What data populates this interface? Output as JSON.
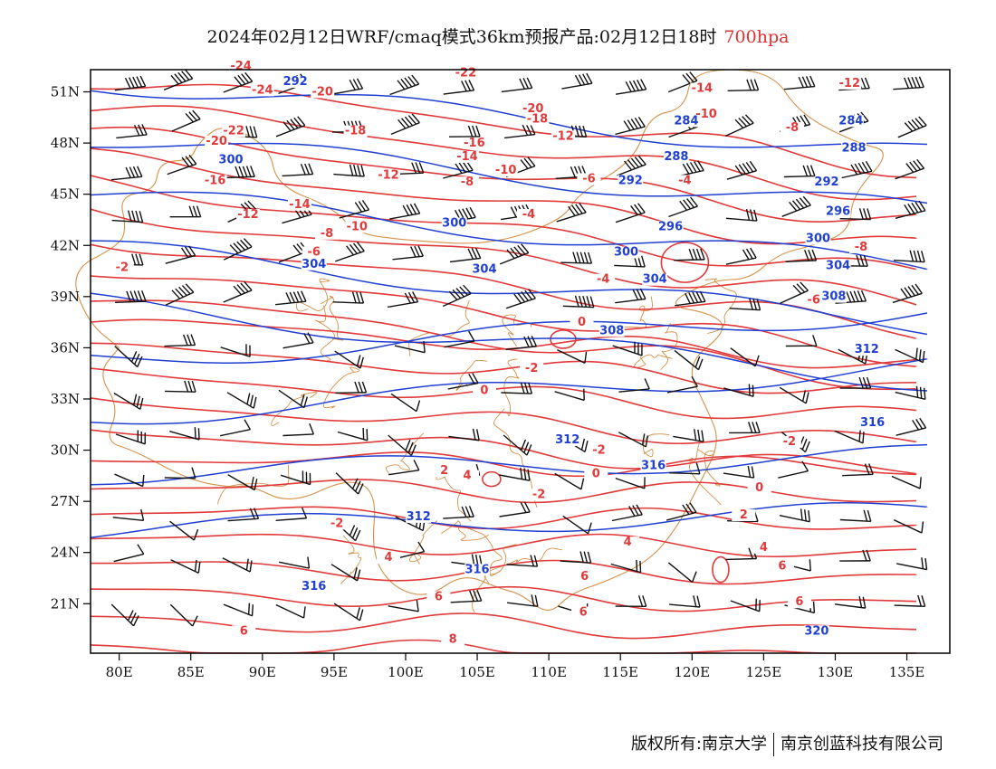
{
  "title": {
    "main": "2024年02月12日WRF/cmaq模式36km预报产品:02月12日18时",
    "level": "700hpa"
  },
  "colors": {
    "temperature": "#e03a3a",
    "height": "#2040d0",
    "boundary": "#d4914a",
    "wind": "#111111",
    "frame": "#000000"
  },
  "axes": {
    "lon_ticks": [
      "80E",
      "85E",
      "90E",
      "95E",
      "100E",
      "105E",
      "110E",
      "115E",
      "120E",
      "125E",
      "130E",
      "135E"
    ],
    "lat_ticks": [
      "51N",
      "48N",
      "45N",
      "42N",
      "39N",
      "36N",
      "33N",
      "30N",
      "27N",
      "24N",
      "21N"
    ]
  },
  "temperature_labels": [
    {
      "text": "-24",
      "lon": 88.5,
      "lat": 52.3
    },
    {
      "text": "-24",
      "lon": 90.0,
      "lat": 50.9
    },
    {
      "text": "-22",
      "lon": 104.2,
      "lat": 51.9
    },
    {
      "text": "-22",
      "lon": 88.0,
      "lat": 48.5
    },
    {
      "text": "-20",
      "lon": 94.2,
      "lat": 50.8
    },
    {
      "text": "-20",
      "lon": 86.8,
      "lat": 47.9
    },
    {
      "text": "-20",
      "lon": 108.9,
      "lat": 49.8
    },
    {
      "text": "-18",
      "lon": 109.2,
      "lat": 49.2
    },
    {
      "text": "-18",
      "lon": 96.5,
      "lat": 48.5
    },
    {
      "text": "-16",
      "lon": 86.7,
      "lat": 45.6
    },
    {
      "text": "-16",
      "lon": 104.8,
      "lat": 47.8
    },
    {
      "text": "-14",
      "lon": 104.3,
      "lat": 47.0
    },
    {
      "text": "-14",
      "lon": 92.6,
      "lat": 44.2
    },
    {
      "text": "-14",
      "lon": 120.7,
      "lat": 51.0
    },
    {
      "text": "-12",
      "lon": 98.8,
      "lat": 45.9
    },
    {
      "text": "-12",
      "lon": 89.0,
      "lat": 43.6
    },
    {
      "text": "-12",
      "lon": 111.0,
      "lat": 48.2
    },
    {
      "text": "-12",
      "lon": 131.0,
      "lat": 51.3
    },
    {
      "text": "-10",
      "lon": 96.6,
      "lat": 42.9
    },
    {
      "text": "-10",
      "lon": 107.0,
      "lat": 46.2
    },
    {
      "text": "-10",
      "lon": 121.0,
      "lat": 49.5
    },
    {
      "text": "-8",
      "lon": 94.5,
      "lat": 42.5
    },
    {
      "text": "-8",
      "lon": 104.3,
      "lat": 45.5
    },
    {
      "text": "-8",
      "lon": 127.0,
      "lat": 48.7
    },
    {
      "text": "-8",
      "lon": 131.8,
      "lat": 41.7
    },
    {
      "text": "-6",
      "lon": 93.6,
      "lat": 41.4
    },
    {
      "text": "-6",
      "lon": 112.8,
      "lat": 45.7
    },
    {
      "text": "-6",
      "lon": 128.5,
      "lat": 38.6
    },
    {
      "text": "-4",
      "lon": 108.6,
      "lat": 43.6
    },
    {
      "text": "-4",
      "lon": 119.5,
      "lat": 45.6
    },
    {
      "text": "-4",
      "lon": 113.8,
      "lat": 39.8
    },
    {
      "text": "-2",
      "lon": 80.2,
      "lat": 40.5
    },
    {
      "text": "-2",
      "lon": 108.8,
      "lat": 34.6
    },
    {
      "text": "-2",
      "lon": 113.5,
      "lat": 29.8
    },
    {
      "text": "-2",
      "lon": 109.3,
      "lat": 27.2
    },
    {
      "text": "-2",
      "lon": 126.8,
      "lat": 30.3
    },
    {
      "text": "-2",
      "lon": 95.2,
      "lat": 25.5
    },
    {
      "text": "0",
      "lon": 105.5,
      "lat": 33.3
    },
    {
      "text": "0",
      "lon": 112.3,
      "lat": 37.3
    },
    {
      "text": "0",
      "lon": 113.3,
      "lat": 28.4
    },
    {
      "text": "0",
      "lon": 124.7,
      "lat": 27.6
    },
    {
      "text": "2",
      "lon": 102.7,
      "lat": 28.6
    },
    {
      "text": "2",
      "lon": 123.6,
      "lat": 26.0
    },
    {
      "text": "4",
      "lon": 104.3,
      "lat": 28.3
    },
    {
      "text": "4",
      "lon": 98.8,
      "lat": 23.5
    },
    {
      "text": "4",
      "lon": 115.5,
      "lat": 24.4
    },
    {
      "text": "4",
      "lon": 125.0,
      "lat": 24.1
    },
    {
      "text": "6",
      "lon": 112.5,
      "lat": 22.4
    },
    {
      "text": "6",
      "lon": 126.3,
      "lat": 23.0
    },
    {
      "text": "6",
      "lon": 102.3,
      "lat": 21.2
    },
    {
      "text": "6",
      "lon": 112.4,
      "lat": 20.3
    },
    {
      "text": "6",
      "lon": 127.5,
      "lat": 20.9
    },
    {
      "text": "6",
      "lon": 88.7,
      "lat": 19.2
    },
    {
      "text": "8",
      "lon": 103.3,
      "lat": 18.7
    }
  ],
  "height_labels": [
    {
      "text": "292",
      "lon": 92.3,
      "lat": 51.4
    },
    {
      "text": "300",
      "lon": 87.8,
      "lat": 46.8
    },
    {
      "text": "284",
      "lon": 119.6,
      "lat": 49.1
    },
    {
      "text": "284",
      "lon": 131.1,
      "lat": 49.1
    },
    {
      "text": "288",
      "lon": 118.9,
      "lat": 47.0
    },
    {
      "text": "288",
      "lon": 131.3,
      "lat": 47.5
    },
    {
      "text": "292",
      "lon": 115.7,
      "lat": 45.6
    },
    {
      "text": "292",
      "lon": 129.4,
      "lat": 45.5
    },
    {
      "text": "296",
      "lon": 118.5,
      "lat": 42.9
    },
    {
      "text": "296",
      "lon": 130.2,
      "lat": 43.8
    },
    {
      "text": "300",
      "lon": 103.4,
      "lat": 43.1
    },
    {
      "text": "300",
      "lon": 115.4,
      "lat": 41.4
    },
    {
      "text": "300",
      "lon": 128.8,
      "lat": 42.2
    },
    {
      "text": "304",
      "lon": 93.6,
      "lat": 40.7
    },
    {
      "text": "304",
      "lon": 105.5,
      "lat": 40.4
    },
    {
      "text": "304",
      "lon": 117.4,
      "lat": 39.8
    },
    {
      "text": "304",
      "lon": 130.2,
      "lat": 40.6
    },
    {
      "text": "308",
      "lon": 114.4,
      "lat": 36.8
    },
    {
      "text": "308",
      "lon": 129.9,
      "lat": 38.8
    },
    {
      "text": "312",
      "lon": 132.2,
      "lat": 35.7
    },
    {
      "text": "312",
      "lon": 111.3,
      "lat": 30.4
    },
    {
      "text": "312",
      "lon": 100.9,
      "lat": 25.9
    },
    {
      "text": "316",
      "lon": 132.6,
      "lat": 31.4
    },
    {
      "text": "316",
      "lon": 117.3,
      "lat": 28.9
    },
    {
      "text": "316",
      "lon": 105.0,
      "lat": 22.8
    },
    {
      "text": "316",
      "lon": 93.6,
      "lat": 21.8
    },
    {
      "text": "320",
      "lon": 128.7,
      "lat": 19.2
    }
  ]
}
